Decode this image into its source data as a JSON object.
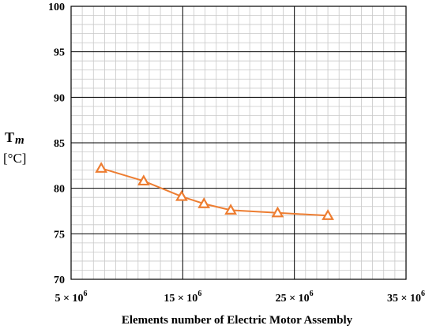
{
  "chart_data": {
    "type": "line",
    "xlabel": "Elements number of Electric Motor Assembly",
    "ylabel": "T",
    "ylabel_subscript": "m",
    "yunit": "[°C]",
    "xlim": [
      5000000,
      35000000
    ],
    "ylim": [
      70,
      100
    ],
    "x_ticks": [
      {
        "value": 5000000,
        "mantissa": "5",
        "exponent": "6"
      },
      {
        "value": 15000000,
        "mantissa": "15",
        "exponent": "6"
      },
      {
        "value": 25000000,
        "mantissa": "25",
        "exponent": "6"
      },
      {
        "value": 35000000,
        "mantissa": "35",
        "exponent": "6"
      }
    ],
    "y_ticks": [
      70,
      75,
      80,
      85,
      90,
      95,
      100
    ],
    "major_grid": true,
    "minor_grid": true,
    "series": [
      {
        "marker": "triangle",
        "color": "#ED7D31",
        "x": [
          7700000,
          11500000,
          14900000,
          16900000,
          19300000,
          23500000,
          28000000
        ],
        "y": [
          82.2,
          80.8,
          79.1,
          78.3,
          77.6,
          77.3,
          77.0
        ]
      }
    ]
  }
}
